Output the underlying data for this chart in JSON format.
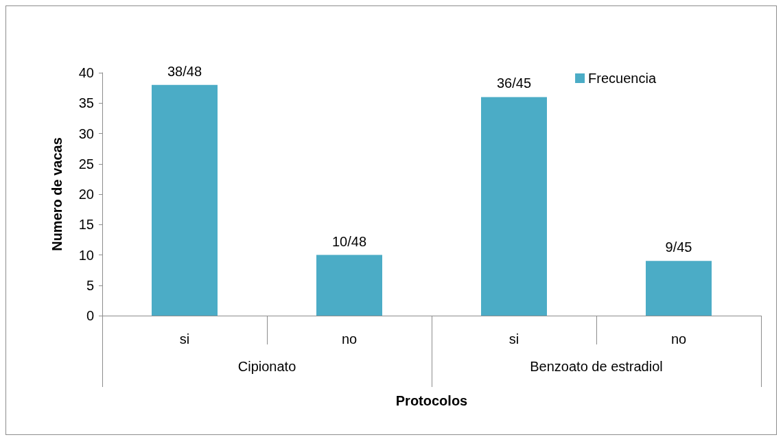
{
  "chart_data": {
    "type": "bar",
    "xlabel": "Protocolos",
    "ylabel": "Numero de vacas",
    "categories": [
      "si",
      "no",
      "si",
      "no"
    ],
    "annotations": [
      "Cipionato",
      "Benzoato de estradiol"
    ],
    "series": [
      {
        "name": "Frecuencia",
        "color": "#4bacc6",
        "values": [
          38,
          10,
          36,
          9
        ],
        "value_labels": [
          "38/48",
          "10/48",
          "36/45",
          "9/45"
        ]
      }
    ],
    "ylim": [
      0,
      40
    ],
    "yticks": [
      0,
      5,
      10,
      15,
      20,
      25,
      30,
      35,
      40
    ],
    "grid": false,
    "legend": "top right"
  }
}
